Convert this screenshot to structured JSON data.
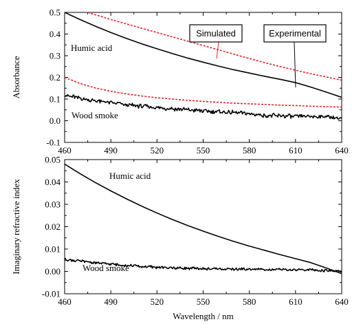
{
  "chart_data": [
    {
      "type": "line",
      "ylabel": "Absorbance",
      "xlim": [
        460,
        640
      ],
      "ylim": [
        -0.1,
        0.5
      ],
      "x_ticks": [
        "460",
        "490",
        "520",
        "550",
        "580",
        "610",
        "640"
      ],
      "y_ticks": [
        "-0.1",
        "0.0",
        "0.1",
        "0.2",
        "0.3",
        "0.4",
        "0.5"
      ],
      "series": [
        {
          "name": "Humic acid",
          "kind": "experimental",
          "color": "#000000",
          "x": [
            460,
            470,
            480,
            490,
            500,
            510,
            520,
            530,
            540,
            550,
            560,
            570,
            580,
            590,
            600,
            610,
            620,
            630,
            640
          ],
          "y": [
            0.5,
            0.467,
            0.436,
            0.407,
            0.38,
            0.355,
            0.332,
            0.31,
            0.289,
            0.27,
            0.252,
            0.235,
            0.22,
            0.205,
            0.191,
            0.176,
            0.155,
            0.132,
            0.108
          ]
        },
        {
          "name": "Humic acid",
          "kind": "simulated",
          "color": "#e8202a",
          "dashed": true,
          "x": [
            475,
            490,
            500,
            510,
            520,
            530,
            540,
            550,
            560,
            570,
            580,
            590,
            600,
            610,
            620,
            630,
            640
          ],
          "y": [
            0.5,
            0.467,
            0.447,
            0.427,
            0.407,
            0.387,
            0.367,
            0.347,
            0.327,
            0.307,
            0.287,
            0.268,
            0.25,
            0.233,
            0.217,
            0.202,
            0.187
          ]
        },
        {
          "name": "Wood smoke",
          "kind": "experimental",
          "color": "#000000",
          "x": [
            460,
            470,
            480,
            490,
            500,
            510,
            520,
            530,
            540,
            550,
            560,
            570,
            580,
            590,
            600,
            610,
            620,
            630,
            640
          ],
          "y": [
            0.12,
            0.104,
            0.092,
            0.083,
            0.074,
            0.067,
            0.06,
            0.055,
            0.05,
            0.045,
            0.041,
            0.037,
            0.032,
            0.025,
            0.022,
            0.02,
            0.019,
            0.019,
            0.01
          ]
        },
        {
          "name": "Wood smoke",
          "kind": "simulated",
          "color": "#e8202a",
          "dashed": true,
          "x": [
            460,
            470,
            480,
            490,
            500,
            510,
            520,
            530,
            540,
            550,
            560,
            570,
            580,
            590,
            600,
            610,
            620,
            630,
            640
          ],
          "y": [
            0.2,
            0.172,
            0.151,
            0.136,
            0.124,
            0.114,
            0.106,
            0.1,
            0.094,
            0.089,
            0.085,
            0.081,
            0.078,
            0.075,
            0.072,
            0.07,
            0.067,
            0.065,
            0.063
          ]
        }
      ],
      "annotations": [
        {
          "text": "Humic acid"
        },
        {
          "text": "Wood smoke"
        },
        {
          "text": "Simulated",
          "boxed": true
        },
        {
          "text": "Experimental",
          "boxed": true
        }
      ]
    },
    {
      "type": "line",
      "xlabel": "Wavelength / nm",
      "ylabel": "Imaginary refractive index",
      "xlim": [
        460,
        640
      ],
      "ylim": [
        -0.01,
        0.05
      ],
      "x_ticks": [
        "460",
        "490",
        "520",
        "550",
        "580",
        "610",
        "640"
      ],
      "y_ticks": [
        "-0.01",
        "0.00",
        "0.01",
        "0.02",
        "0.03",
        "0.04",
        "0.05"
      ],
      "series": [
        {
          "name": "Humic acid",
          "color": "#000000",
          "x": [
            460,
            470,
            480,
            490,
            500,
            510,
            520,
            530,
            540,
            550,
            560,
            570,
            580,
            590,
            600,
            610,
            620,
            630,
            640
          ],
          "y": [
            0.048,
            0.0437,
            0.0397,
            0.036,
            0.0325,
            0.0292,
            0.0261,
            0.0232,
            0.0205,
            0.018,
            0.0156,
            0.0134,
            0.0113,
            0.0094,
            0.0075,
            0.0057,
            0.0039,
            0.0015,
            -0.001
          ]
        },
        {
          "name": "Wood smoke",
          "color": "#000000",
          "x": [
            460,
            470,
            480,
            490,
            500,
            510,
            520,
            530,
            540,
            550,
            560,
            570,
            580,
            590,
            600,
            610,
            620,
            630,
            640
          ],
          "y": [
            0.0055,
            0.0046,
            0.0038,
            0.0032,
            0.0027,
            0.0022,
            0.0018,
            0.0016,
            0.0014,
            0.0012,
            0.0011,
            0.001,
            0.0009,
            0.0009,
            0.0008,
            0.0007,
            0.0006,
            0.0003,
            0.0001
          ]
        }
      ],
      "annotations": [
        {
          "text": "Humic acid"
        },
        {
          "text": "Wood smoke"
        }
      ]
    }
  ]
}
